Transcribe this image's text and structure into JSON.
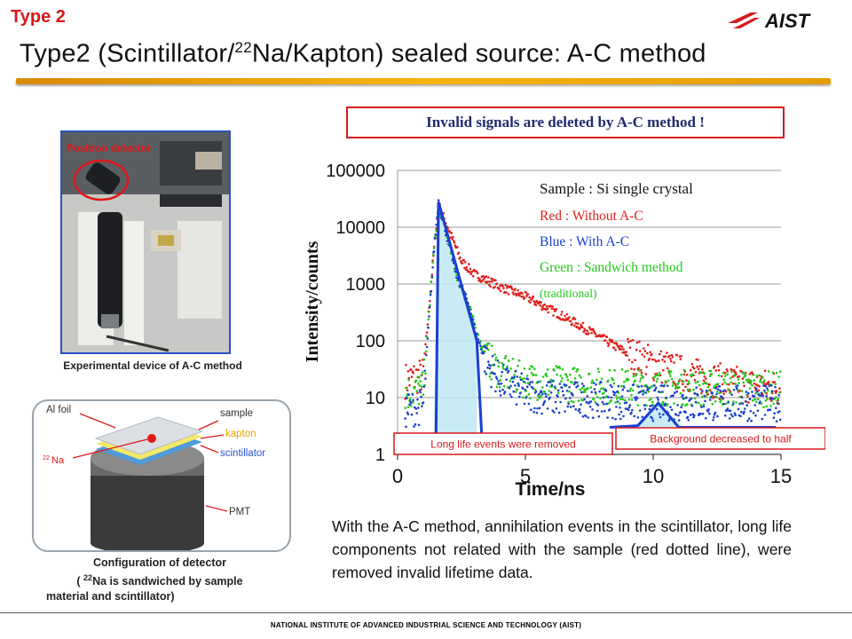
{
  "header": {
    "type_label": "Type 2",
    "logo_text": "AIST",
    "title_before": "Type2 (Scintillator/",
    "title_sup": "22",
    "title_after": "Na/Kapton) sealed source: A-C method"
  },
  "banner": "Invalid signals are deleted by A-C method !",
  "photo": {
    "label": "Positron detector",
    "caption": "Experimental device of A-C method"
  },
  "detector": {
    "labels": {
      "al_foil": "Al foil",
      "na_sup": "22",
      "na": "Na",
      "sample": "sample",
      "kapton": "kapton",
      "scintillator": "scintillator",
      "pmt": "PMT"
    },
    "caption_line1": "Configuration of detector",
    "caption_line2_pre": "( ",
    "caption_line2_sup": "22",
    "caption_line2_post": "Na is sandwiched by sample",
    "caption_line3": "material and scintillator)"
  },
  "description": "With the A-C method, annihilation events in the scintillator, long life components not related with the sample (red dotted line), were removed invalid lifetime data.",
  "footer": "NATIONAL INSTITUTE OF ADVANCED INDUSTRIAL SCIENCE AND TECHNOLOGY (AIST)",
  "colors": {
    "red": "#e0201c",
    "blue": "#1a3fd0",
    "green": "#22c81a",
    "accent": "#d7191c",
    "highlight_fill": "#bfe8f4"
  },
  "chart_data": {
    "type": "scatter",
    "xlabel": "Time/ns",
    "ylabel": "Intensity/counts",
    "xlim": [
      0,
      15
    ],
    "ylim": [
      1,
      100000
    ],
    "yscale": "log",
    "xticks": [
      "0",
      "5",
      "10",
      "15"
    ],
    "yticks": [
      "1",
      "10",
      "100",
      "1000",
      "10000",
      "100000"
    ],
    "grid": "horizontal",
    "legend": {
      "title": "Sample : Si single crystal",
      "entries": [
        {
          "label": "Red   : Without A-C",
          "color": "#e0201c"
        },
        {
          "label": "Blue  : With A-C",
          "color": "#1a3fd0"
        },
        {
          "label": "Green : Sandwich method",
          "color": "#22c81a"
        },
        {
          "label": "(traditional)",
          "color": "#22c81a"
        }
      ]
    },
    "annotations": [
      {
        "text": "Long life events were removed",
        "x": 3.1,
        "y": 100
      },
      {
        "text": "Background decreased to half",
        "x": 10.2,
        "y": 8
      }
    ],
    "series": [
      {
        "name": "Without A-C",
        "color": "#e0201c",
        "points": [
          [
            0.3,
            20
          ],
          [
            1.0,
            25
          ],
          [
            1.4,
            3000
          ],
          [
            1.6,
            25000
          ],
          [
            1.8,
            15000
          ],
          [
            2.5,
            2500
          ],
          [
            3.0,
            1500
          ],
          [
            4.0,
            900
          ],
          [
            5.0,
            600
          ],
          [
            6.0,
            350
          ],
          [
            7.0,
            200
          ],
          [
            8.0,
            110
          ],
          [
            9.0,
            60
          ],
          [
            10.0,
            40
          ],
          [
            11.0,
            28
          ],
          [
            12.0,
            22
          ],
          [
            13.0,
            18
          ],
          [
            14.0,
            16
          ],
          [
            15.0,
            15
          ]
        ]
      },
      {
        "name": "With A-C",
        "color": "#1a3fd0",
        "points": [
          [
            0.3,
            6
          ],
          [
            1.0,
            7
          ],
          [
            1.4,
            3000
          ],
          [
            1.6,
            28000
          ],
          [
            1.8,
            12000
          ],
          [
            2.3,
            1500
          ],
          [
            2.8,
            400
          ],
          [
            3.1,
            120
          ],
          [
            3.5,
            40
          ],
          [
            4.0,
            20
          ],
          [
            5.0,
            12
          ],
          [
            6.0,
            10
          ],
          [
            8.0,
            9
          ],
          [
            10.0,
            8
          ],
          [
            12.0,
            8
          ],
          [
            15.0,
            8
          ]
        ]
      },
      {
        "name": "Sandwich method (traditional)",
        "color": "#22c81a",
        "points": [
          [
            0.3,
            12
          ],
          [
            1.0,
            14
          ],
          [
            1.4,
            3000
          ],
          [
            1.6,
            25000
          ],
          [
            1.8,
            12000
          ],
          [
            2.3,
            1500
          ],
          [
            2.8,
            400
          ],
          [
            3.1,
            130
          ],
          [
            3.5,
            50
          ],
          [
            4.0,
            28
          ],
          [
            5.0,
            20
          ],
          [
            6.0,
            18
          ],
          [
            8.0,
            16
          ],
          [
            10.0,
            15
          ],
          [
            12.0,
            15
          ],
          [
            15.0,
            14
          ]
        ]
      }
    ]
  }
}
